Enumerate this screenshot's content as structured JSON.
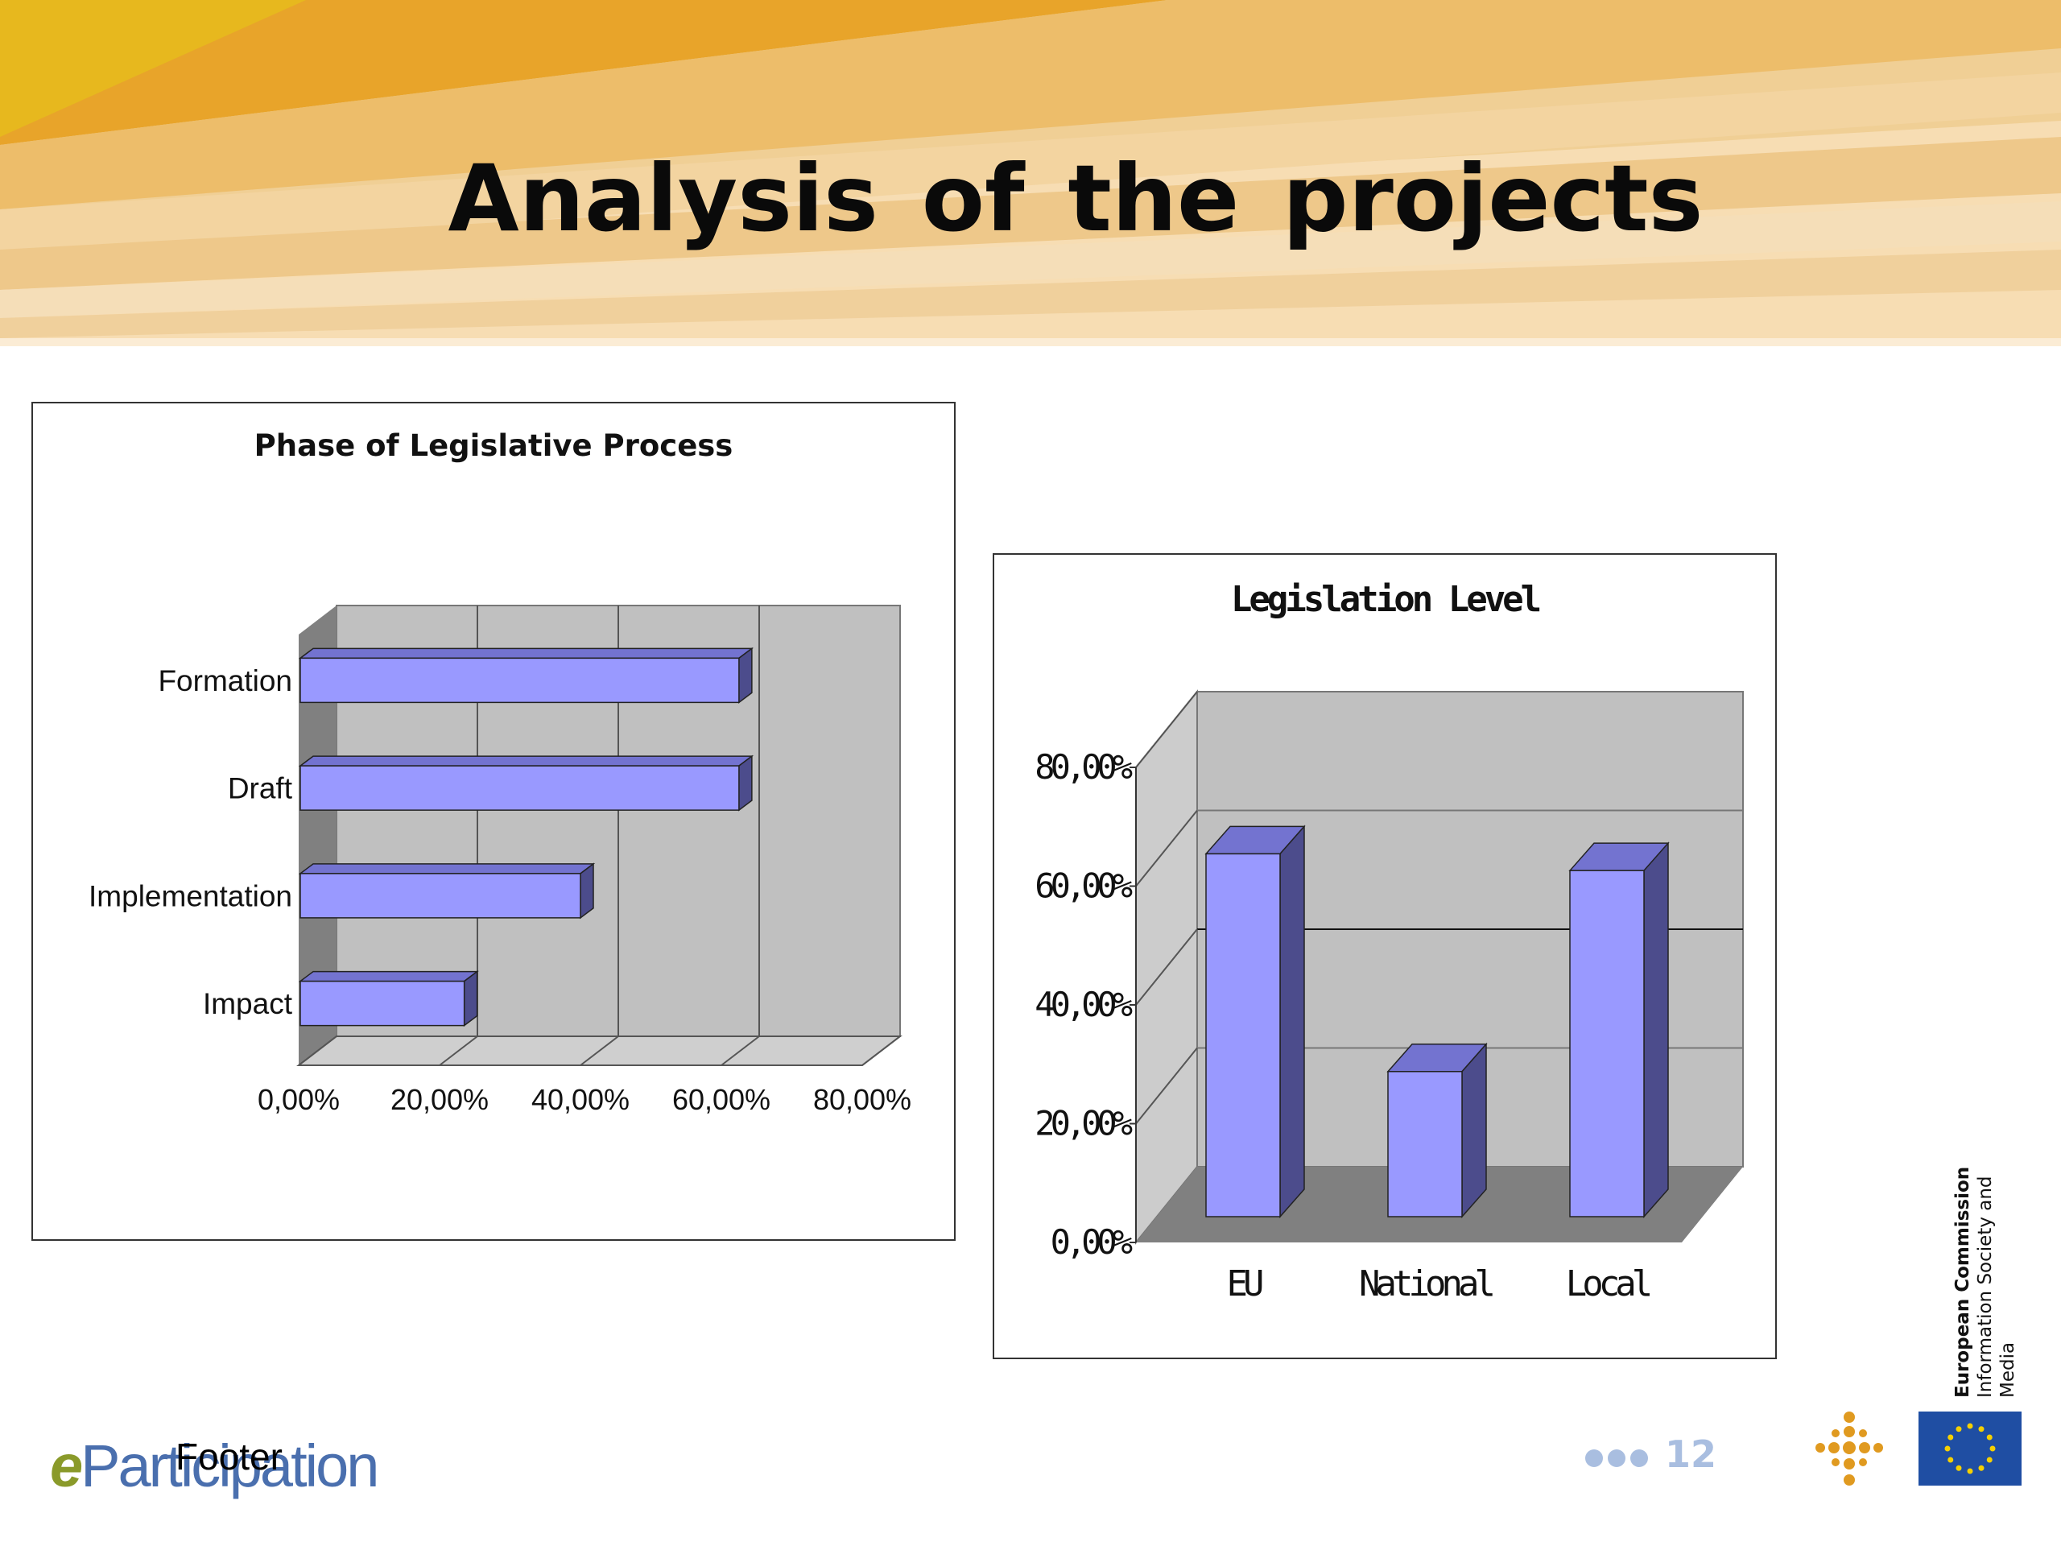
{
  "slide": {
    "title": "Analysis  of the  projects",
    "footer": "Footer",
    "page_number": "12",
    "logo_text": "Participation",
    "logo_letter": "e",
    "commission_name": "European Commission",
    "commission_dg": "Information Society and Media"
  },
  "colors": {
    "bar_face": "#9999ff",
    "bar_side": "#4c4c8c",
    "bar_top": "#7373d0",
    "plot_back": "#c0c0c0",
    "plot_floor": "#808080",
    "header_gold": "#e8a420",
    "accent_orange": "#e09a20",
    "flag_blue": "#1f4ea3",
    "flag_star": "#f5d000"
  },
  "chart_data": [
    {
      "type": "bar",
      "orientation": "horizontal",
      "title": "Phase of Legislative Process",
      "categories": [
        "Formation",
        "Draft",
        "Implementation",
        "Impact"
      ],
      "values": [
        0.625,
        0.625,
        0.4,
        0.235
      ],
      "xlim": [
        0,
        0.8
      ],
      "ticks": [
        0,
        0.2,
        0.4,
        0.6,
        0.8
      ],
      "tick_labels": [
        "0,00%",
        "20,00%",
        "40,00%",
        "60,00%",
        "80,00%"
      ],
      "grid": true,
      "legend": "none",
      "style": "3d"
    },
    {
      "type": "bar",
      "orientation": "vertical",
      "title": "Legislation Level",
      "categories": [
        "EU",
        "National",
        "Local"
      ],
      "values": [
        0.65,
        0.26,
        0.62
      ],
      "ylim": [
        0,
        0.8
      ],
      "ticks": [
        0,
        0.2,
        0.4,
        0.6,
        0.8
      ],
      "tick_labels": [
        "0,00%",
        "20,00%",
        "40,00%",
        "60,00%",
        "80,00%"
      ],
      "grid": true,
      "legend": "none",
      "style": "3d"
    }
  ]
}
